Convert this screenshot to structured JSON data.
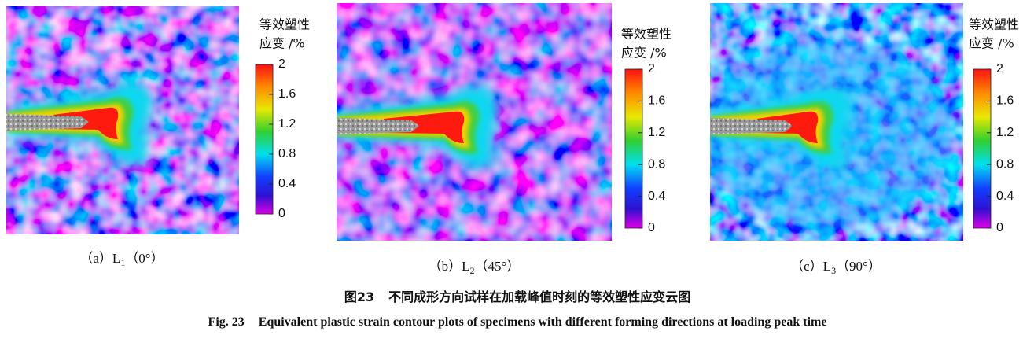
{
  "figure": {
    "panels": [
      {
        "colorbar": {
          "title": [
            "等效塑性",
            "应变 /%"
          ],
          "ticks": [
            2,
            1.6,
            1.2,
            0.8,
            0.4,
            0
          ]
        },
        "caption": {
          "label": "（a）",
          "name": "L",
          "sub": "1",
          "angle": "（0°）"
        }
      },
      {
        "colorbar": {
          "title": [
            "等效塑性",
            "应变 /%"
          ],
          "ticks": [
            2,
            1.6,
            1.2,
            0.8,
            0.4,
            0
          ]
        },
        "caption": {
          "label": "（b）",
          "name": "L",
          "sub": "2",
          "angle": "（45°）"
        }
      },
      {
        "colorbar": {
          "title": [
            "等效塑性",
            "应变 /%"
          ],
          "ticks": [
            2,
            1.6,
            1.2,
            0.8,
            0.4,
            0
          ]
        },
        "caption": {
          "label": "（c）",
          "name": "L",
          "sub": "3",
          "angle": "（90°）"
        }
      }
    ],
    "caption_zh": {
      "number": "图23",
      "text": "不同成形方向试样在加载峰值时刻的等效塑性应变云图"
    },
    "caption_en": {
      "number": "Fig. 23",
      "text": "Equivalent plastic strain contour plots of specimens with different forming directions at loading peak time"
    }
  }
}
